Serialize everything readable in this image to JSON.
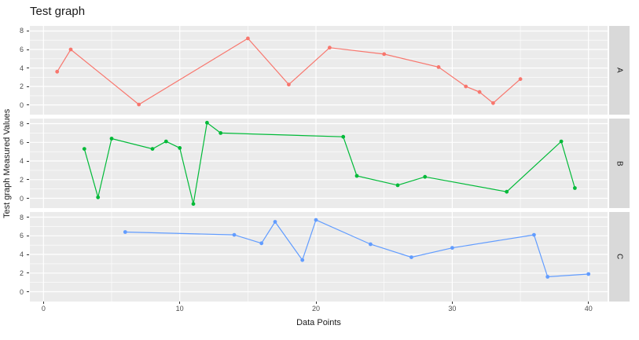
{
  "chart_data": {
    "type": "line",
    "title": "Test graph",
    "xlabel": "Data Points",
    "ylabel": "Test graph Measured Values",
    "xlim": [
      -1,
      41.4
    ],
    "ylim": [
      -1.05,
      8.55
    ],
    "x_ticks": [
      0,
      10,
      20,
      30,
      40
    ],
    "x_minor": [
      5,
      15,
      25,
      35
    ],
    "y_ticks": [
      0,
      2,
      4,
      6,
      8
    ],
    "y_minor": [
      1,
      3,
      5,
      7
    ],
    "panel_bg": "#ebebeb",
    "grid_color": "#ffffff",
    "strip_bg": "#d9d9d9",
    "facets": [
      {
        "label": "A",
        "color": "#F8766D",
        "x": [
          1,
          2,
          7,
          15,
          18,
          21,
          25,
          29,
          31,
          32,
          33,
          35
        ],
        "y": [
          3.6,
          6.0,
          0.05,
          7.2,
          2.2,
          6.2,
          5.5,
          4.1,
          2.0,
          1.4,
          0.2,
          2.8
        ]
      },
      {
        "label": "B",
        "color": "#00BA38",
        "x": [
          3,
          4,
          5,
          8,
          9,
          10,
          11,
          12,
          13,
          22,
          23,
          26,
          28,
          34,
          38,
          39
        ],
        "y": [
          5.3,
          0.1,
          6.4,
          5.3,
          6.1,
          5.4,
          -0.6,
          8.1,
          7.0,
          6.6,
          2.4,
          1.4,
          2.3,
          0.7,
          6.1,
          1.1
        ]
      },
      {
        "label": "C",
        "color": "#619CFF",
        "x": [
          6,
          14,
          16,
          17,
          19,
          20,
          24,
          27,
          30,
          36,
          37,
          40
        ],
        "y": [
          6.4,
          6.1,
          5.2,
          7.5,
          3.4,
          7.7,
          5.1,
          3.7,
          4.7,
          6.1,
          1.6,
          1.9
        ]
      }
    ]
  }
}
